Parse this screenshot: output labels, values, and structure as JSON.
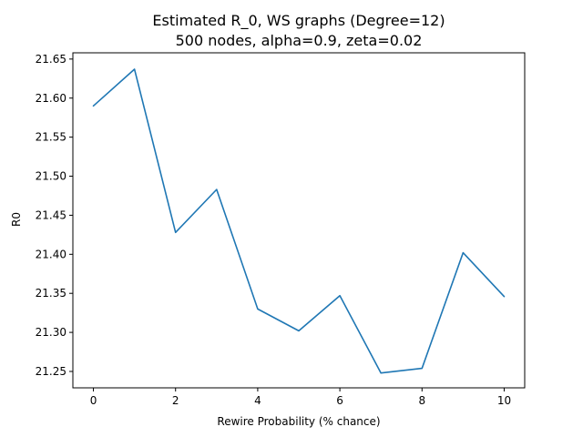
{
  "chart_data": {
    "type": "line",
    "title_line1": "Estimated R_0, WS graphs (Degree=12)",
    "title_line2": "500 nodes, alpha=0.9, zeta=0.02",
    "xlabel": "Rewire Probability (% chance)",
    "ylabel": "R0",
    "xlim": [
      -0.5,
      10.5
    ],
    "ylim": [
      21.229,
      21.658
    ],
    "x_ticks": [
      0,
      2,
      4,
      6,
      8,
      10
    ],
    "x_tick_labels": [
      "0",
      "2",
      "4",
      "6",
      "8",
      "10"
    ],
    "y_ticks": [
      21.25,
      21.3,
      21.35,
      21.4,
      21.45,
      21.5,
      21.55,
      21.6,
      21.65
    ],
    "y_tick_labels": [
      "21.25",
      "21.30",
      "21.35",
      "21.40",
      "21.45",
      "21.50",
      "21.55",
      "21.60",
      "21.65"
    ],
    "grid": false,
    "line_color": "#1f77b4",
    "series": [
      {
        "x": [
          0,
          1,
          2,
          3,
          4,
          5,
          6,
          7,
          8,
          9,
          10
        ],
        "values": [
          21.59,
          21.637,
          21.428,
          21.483,
          21.33,
          21.302,
          21.347,
          21.248,
          21.254,
          21.402,
          21.346
        ]
      }
    ]
  }
}
